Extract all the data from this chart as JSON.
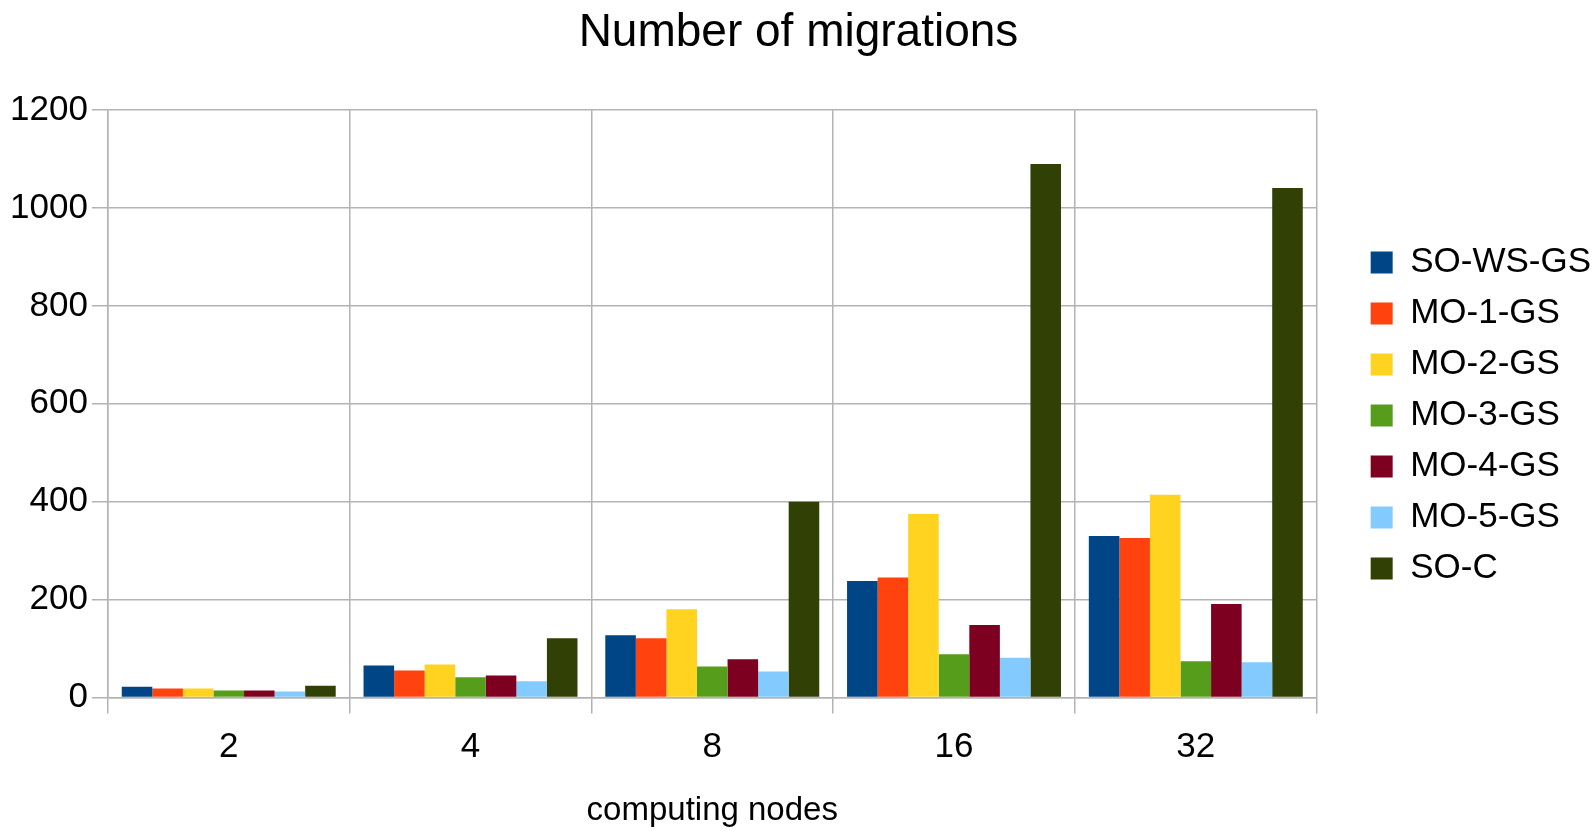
{
  "chart_data": {
    "type": "bar",
    "title": "Number of migrations",
    "xlabel": "computing nodes",
    "categories": [
      "2",
      "4",
      "8",
      "16",
      "32"
    ],
    "series": [
      {
        "name": "SO-WS-GS",
        "color": "#004586",
        "values": [
          22,
          65,
          127,
          238,
          330
        ]
      },
      {
        "name": "MO-1-GS",
        "color": "#ff420e",
        "values": [
          18,
          55,
          121,
          245,
          326
        ]
      },
      {
        "name": "MO-2-GS",
        "color": "#ffd320",
        "values": [
          18,
          67,
          180,
          375,
          414
        ]
      },
      {
        "name": "MO-3-GS",
        "color": "#579d1c",
        "values": [
          14,
          41,
          63,
          88,
          74
        ]
      },
      {
        "name": "MO-4-GS",
        "color": "#7e0021",
        "values": [
          14,
          45,
          78,
          148,
          191
        ]
      },
      {
        "name": "MO-5-GS",
        "color": "#83caff",
        "values": [
          12,
          33,
          53,
          81,
          72
        ]
      },
      {
        "name": "SO-C",
        "color": "#314004",
        "values": [
          24,
          121,
          400,
          1090,
          1041
        ]
      }
    ],
    "ylim": [
      0,
      1200
    ],
    "yticks": [
      0,
      200,
      400,
      600,
      800,
      1000,
      1200
    ],
    "grid": true,
    "legend": "right"
  }
}
